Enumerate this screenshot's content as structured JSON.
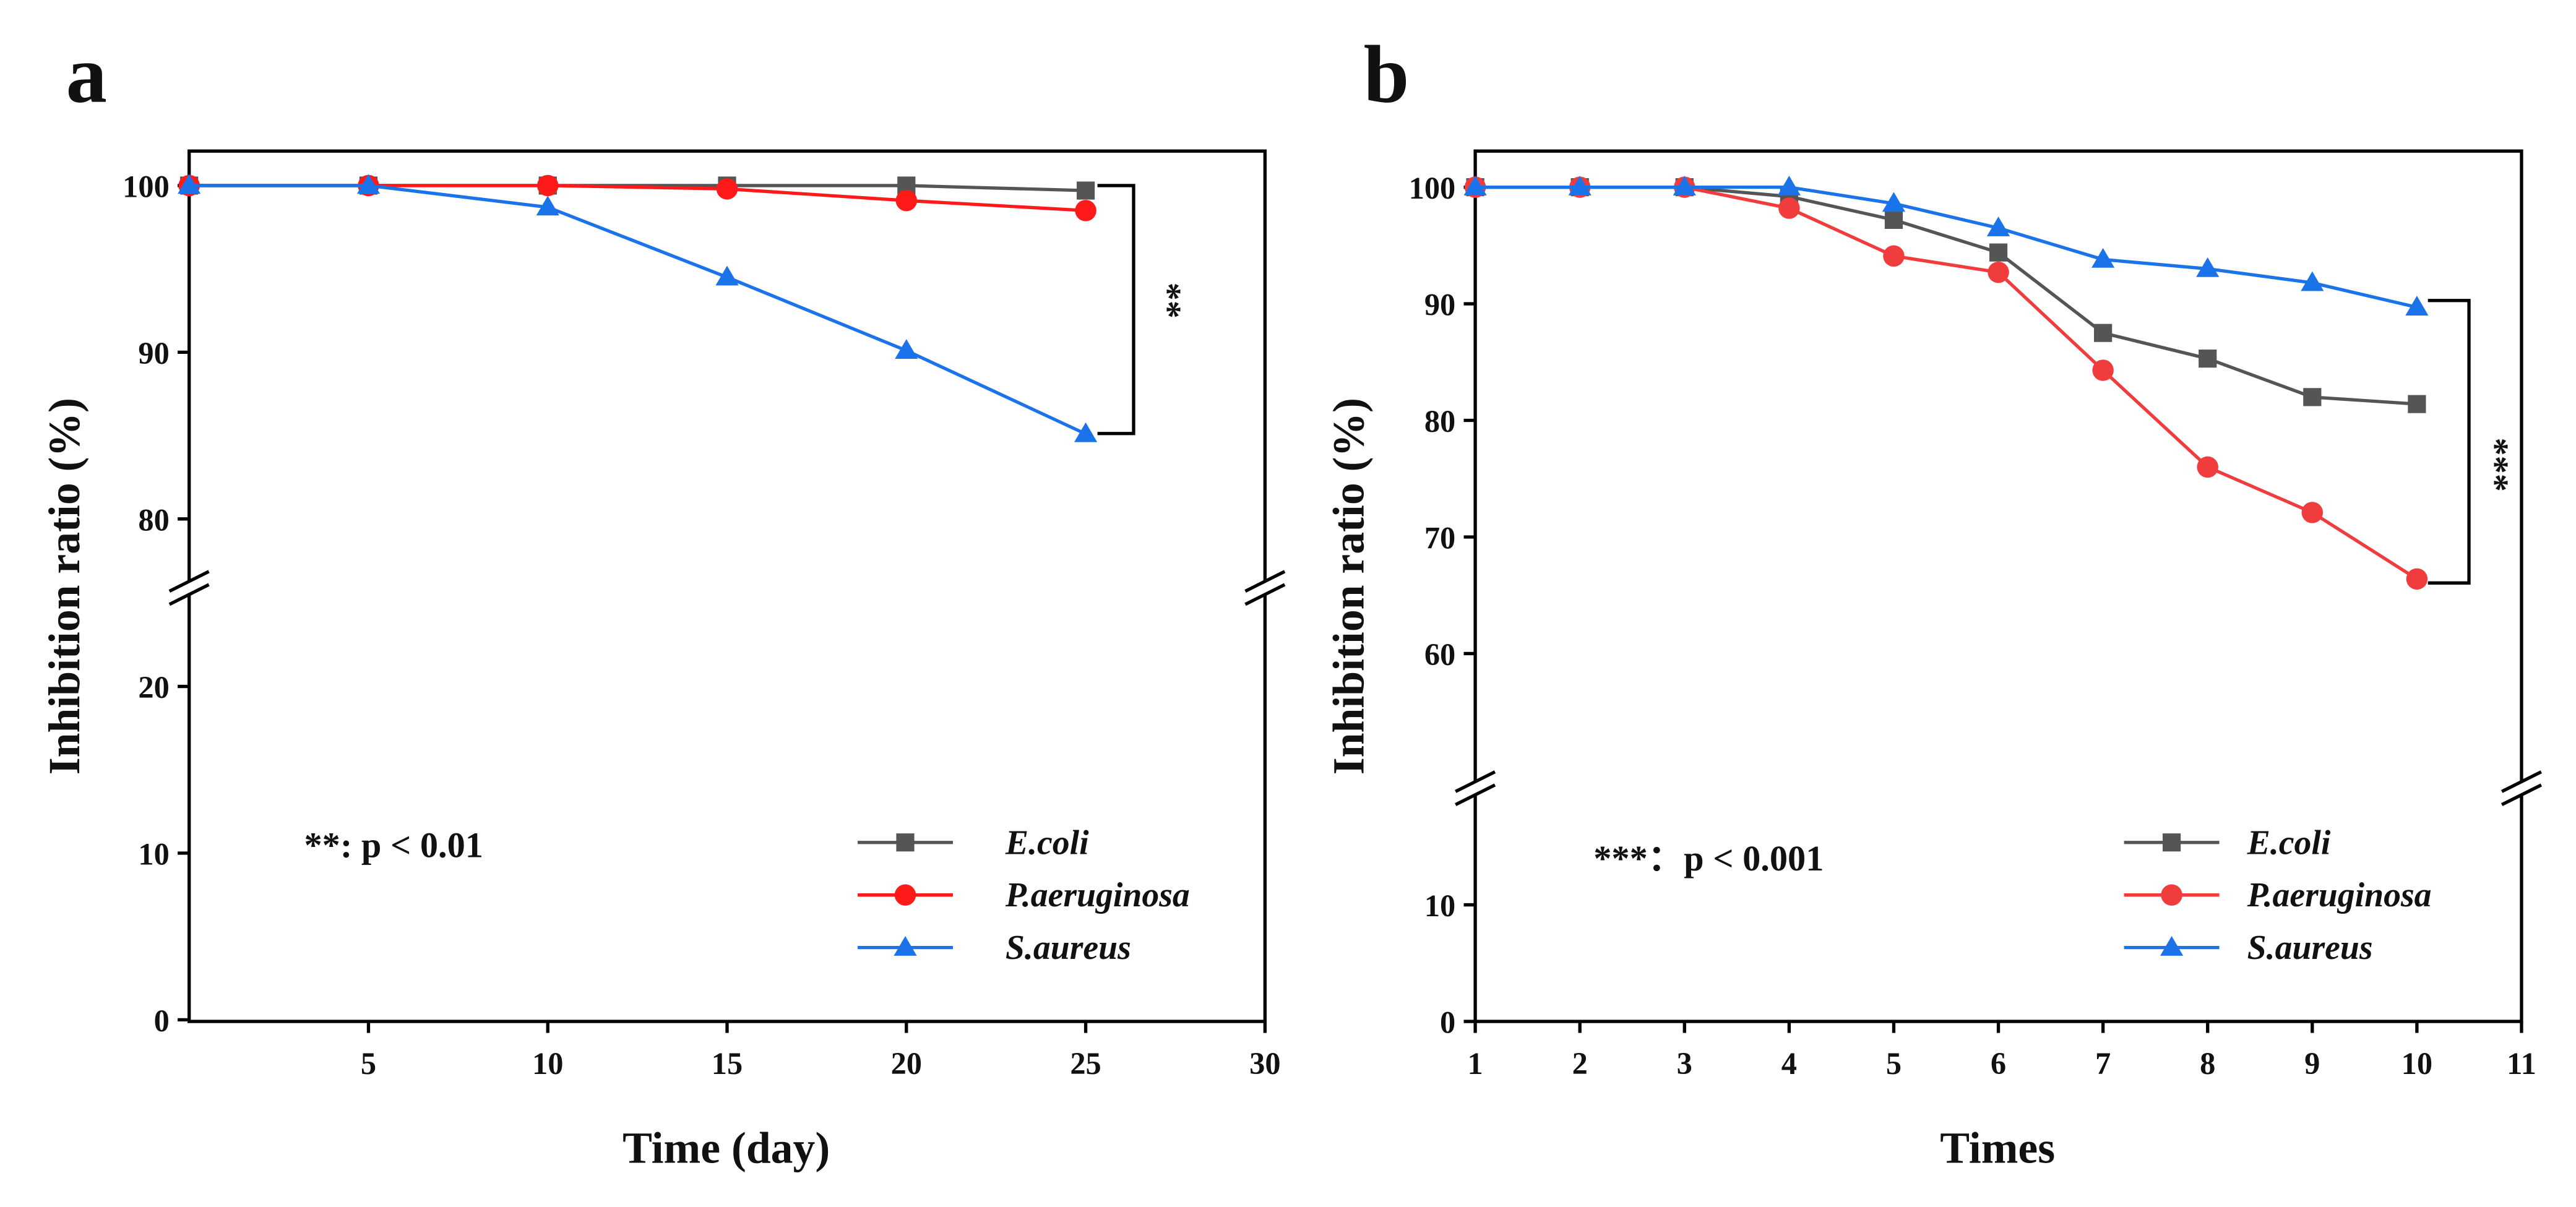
{
  "chart_data": [
    {
      "panel_label": "a",
      "type": "line",
      "title": "",
      "xlabel": "Time (day)",
      "ylabel": "Inhibition ratio (%)",
      "xlim": [
        0,
        30
      ],
      "ylim": [
        0,
        102
      ],
      "y_axis_break": [
        25,
        76
      ],
      "xticks": [
        "5",
        "10",
        "15",
        "20",
        "25",
        "30"
      ],
      "yticks": [
        "0",
        "10",
        "20",
        "80",
        "90",
        "100"
      ],
      "x": [
        0,
        5,
        10,
        15,
        20,
        25
      ],
      "series": [
        {
          "name": "E.coli",
          "color": "#555555",
          "marker": "square",
          "values": [
            100,
            100,
            100,
            100,
            100,
            99.7
          ]
        },
        {
          "name": "P.aeruginosa",
          "color": "#ff1a1a",
          "marker": "circle",
          "values": [
            100,
            100,
            100,
            99.8,
            99.1,
            98.5
          ]
        },
        {
          "name": "S.aureus",
          "color": "#1a73e8",
          "marker": "triangle",
          "values": [
            100,
            100,
            98.7,
            94.5,
            90.1,
            85.1
          ]
        }
      ],
      "significance_bracket": "**",
      "annotation": "**: p < 0.01",
      "legend_position": "bottom-right",
      "grid": false
    },
    {
      "panel_label": "b",
      "type": "line",
      "title": "",
      "xlabel": "Times",
      "ylabel": "Inhibition ratio (%)",
      "xlim": [
        1,
        11
      ],
      "ylim": [
        0,
        103
      ],
      "y_axis_break": [
        19,
        50
      ],
      "xticks": [
        "1",
        "2",
        "3",
        "4",
        "5",
        "6",
        "7",
        "8",
        "9",
        "10",
        "11"
      ],
      "yticks": [
        "0",
        "10",
        "60",
        "70",
        "80",
        "90",
        "100"
      ],
      "x": [
        1,
        2,
        3,
        4,
        5,
        6,
        7,
        8,
        9,
        10
      ],
      "series": [
        {
          "name": "E.coli",
          "color": "#555555",
          "marker": "square",
          "values": [
            100,
            100,
            100,
            99.2,
            97.2,
            94.4,
            87.5,
            85.3,
            82.0,
            81.4
          ]
        },
        {
          "name": "P.aeruginosa",
          "color": "#f03c3c",
          "marker": "circle",
          "values": [
            100,
            100,
            100,
            98.2,
            94.1,
            92.7,
            84.3,
            76.0,
            72.1,
            66.4
          ]
        },
        {
          "name": "S.aureus",
          "color": "#1a73e8",
          "marker": "triangle",
          "values": [
            100,
            100,
            100,
            100,
            98.6,
            96.5,
            93.8,
            93.0,
            91.8,
            89.7
          ]
        }
      ],
      "significance_bracket": "***",
      "annotation": "***：p < 0.001",
      "legend_position": "bottom-right",
      "grid": false
    }
  ]
}
